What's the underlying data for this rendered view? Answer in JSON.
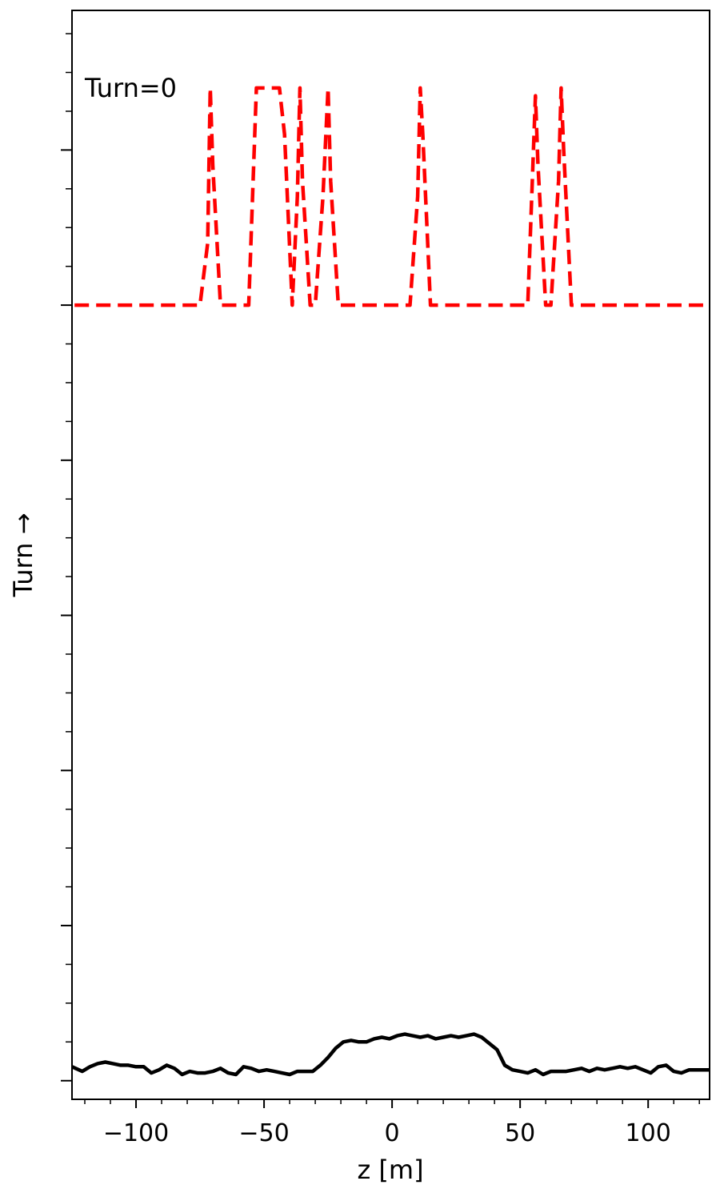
{
  "chart_data": {
    "type": "line",
    "title": "",
    "xlabel": "z [m]",
    "ylabel": "Turn →",
    "xlim": [
      -125,
      124
    ],
    "ylim": [
      -0.12,
      6.9
    ],
    "grid": false,
    "legend": "none",
    "x_ticks": [
      -100,
      -50,
      0,
      50,
      100
    ],
    "x_tick_labels": [
      "−100",
      "−50",
      "0",
      "50",
      "100"
    ],
    "x_minor_step": 10,
    "y_major_ticks": [
      0,
      1,
      2,
      3,
      4,
      5,
      6
    ],
    "y_minor_step": 0.25,
    "annotations": [
      {
        "text": "Turn=0",
        "x": -120,
        "y": 6.2
      }
    ],
    "series": [
      {
        "color": "#ff0000",
        "style": "dashed",
        "x": [
          -124,
          -75,
          -72,
          -71,
          -70,
          -67,
          -56,
          -53,
          -44,
          -42,
          -39,
          -37,
          -36,
          -35,
          -32,
          -30,
          -27,
          -25,
          -24,
          -21,
          -7,
          -5,
          -3,
          0,
          7,
          10,
          11,
          12,
          15,
          53,
          56,
          57,
          60,
          62,
          65,
          66,
          67,
          70,
          122
        ],
        "y": [
          5.0,
          5.0,
          5.4,
          6.4,
          5.9,
          5.0,
          5.0,
          6.4,
          6.4,
          6.1,
          5.0,
          5.7,
          6.4,
          5.8,
          5.0,
          5.0,
          5.7,
          6.4,
          5.8,
          5.0,
          5.0,
          5.0,
          5.0,
          5.0,
          5.0,
          5.7,
          6.4,
          6.1,
          5.0,
          5.0,
          6.35,
          5.9,
          5.0,
          5.0,
          5.8,
          6.4,
          6.0,
          5.0,
          5.0
        ]
      },
      {
        "color": "#000000",
        "style": "solid",
        "x": [
          -125,
          -121,
          -118,
          -115,
          -112,
          -109,
          -106,
          -103,
          -100,
          -97,
          -94,
          -91,
          -88,
          -85,
          -82,
          -79,
          -76,
          -73,
          -70,
          -67,
          -64,
          -61,
          -58,
          -55,
          -52,
          -49,
          -46,
          -43,
          -40,
          -37,
          -34,
          -31,
          -28,
          -25,
          -22,
          -19,
          -16,
          -13,
          -10,
          -7,
          -4,
          -1,
          2,
          5,
          8,
          11,
          14,
          17,
          20,
          23,
          26,
          29,
          32,
          35,
          38,
          41,
          44,
          47,
          50,
          53,
          56,
          59,
          62,
          65,
          68,
          71,
          74,
          77,
          80,
          83,
          86,
          89,
          92,
          95,
          98,
          101,
          104,
          107,
          110,
          113,
          116,
          119,
          122,
          124
        ],
        "y": [
          0.09,
          0.06,
          0.09,
          0.11,
          0.12,
          0.11,
          0.1,
          0.1,
          0.09,
          0.09,
          0.05,
          0.07,
          0.1,
          0.08,
          0.04,
          0.06,
          0.05,
          0.05,
          0.06,
          0.08,
          0.05,
          0.04,
          0.09,
          0.08,
          0.06,
          0.07,
          0.06,
          0.05,
          0.04,
          0.06,
          0.06,
          0.06,
          0.1,
          0.15,
          0.21,
          0.25,
          0.26,
          0.25,
          0.25,
          0.27,
          0.28,
          0.27,
          0.29,
          0.3,
          0.29,
          0.28,
          0.29,
          0.27,
          0.28,
          0.29,
          0.28,
          0.29,
          0.3,
          0.28,
          0.24,
          0.2,
          0.1,
          0.07,
          0.06,
          0.05,
          0.07,
          0.04,
          0.06,
          0.06,
          0.06,
          0.07,
          0.08,
          0.06,
          0.08,
          0.07,
          0.08,
          0.09,
          0.08,
          0.09,
          0.07,
          0.05,
          0.09,
          0.1,
          0.06,
          0.05,
          0.07,
          0.07,
          0.07,
          0.07
        ]
      }
    ]
  }
}
